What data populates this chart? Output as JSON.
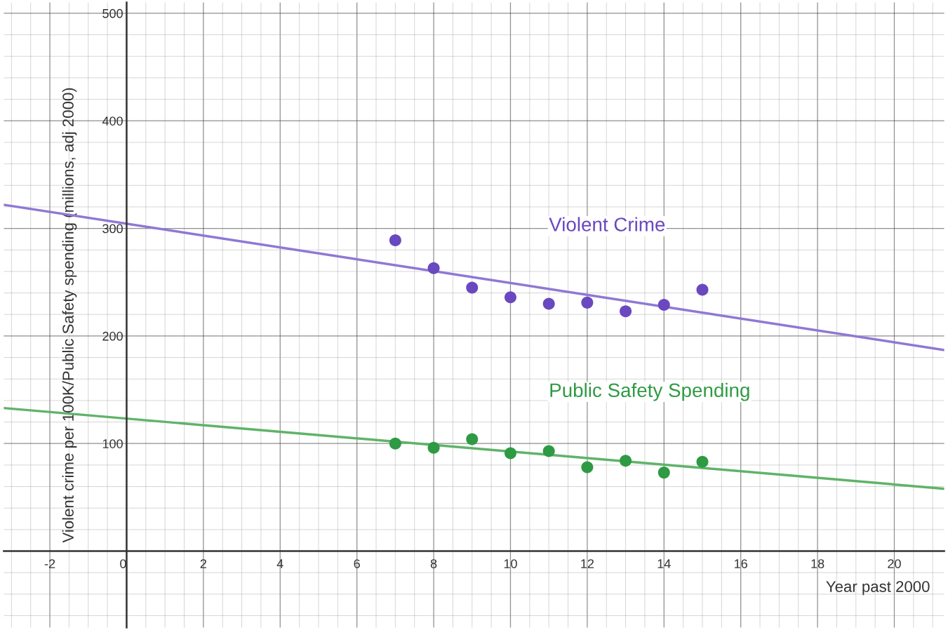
{
  "chart_data": {
    "type": "scatter",
    "xlabel": "Year past 2000",
    "ylabel": "Violent crime per 100K/Public Safety spending (millions, adj 2000)",
    "xlim": [
      -3.2,
      21.3
    ],
    "ylim": [
      -71,
      510
    ],
    "xticks": [
      -2,
      0,
      2,
      4,
      6,
      8,
      10,
      12,
      14,
      16,
      18,
      20
    ],
    "yticks": [
      100,
      200,
      300,
      400,
      500
    ],
    "grid": true,
    "legend": false,
    "series": [
      {
        "name": "Violent Crime",
        "marker": "circle",
        "color": "#6a48c0",
        "x": [
          7,
          8,
          9,
          10,
          11,
          12,
          13,
          14,
          15
        ],
        "values": [
          289,
          263,
          245,
          236,
          230,
          231,
          223,
          229,
          243
        ]
      },
      {
        "type": "line",
        "color": "#8f78d4",
        "x": [
          -3.2,
          21.3
        ],
        "values": [
          322,
          187
        ]
      },
      {
        "name": "Public Safety Spending",
        "marker": "circle",
        "color": "#2f9a44",
        "x": [
          7,
          8,
          9,
          10,
          11,
          12,
          13,
          14,
          15
        ],
        "values": [
          100,
          96,
          104,
          91,
          93,
          78,
          84,
          73,
          83
        ]
      },
      {
        "type": "line",
        "color": "#5fb36a",
        "x": [
          -3.2,
          21.3
        ],
        "values": [
          133,
          58
        ]
      }
    ]
  }
}
